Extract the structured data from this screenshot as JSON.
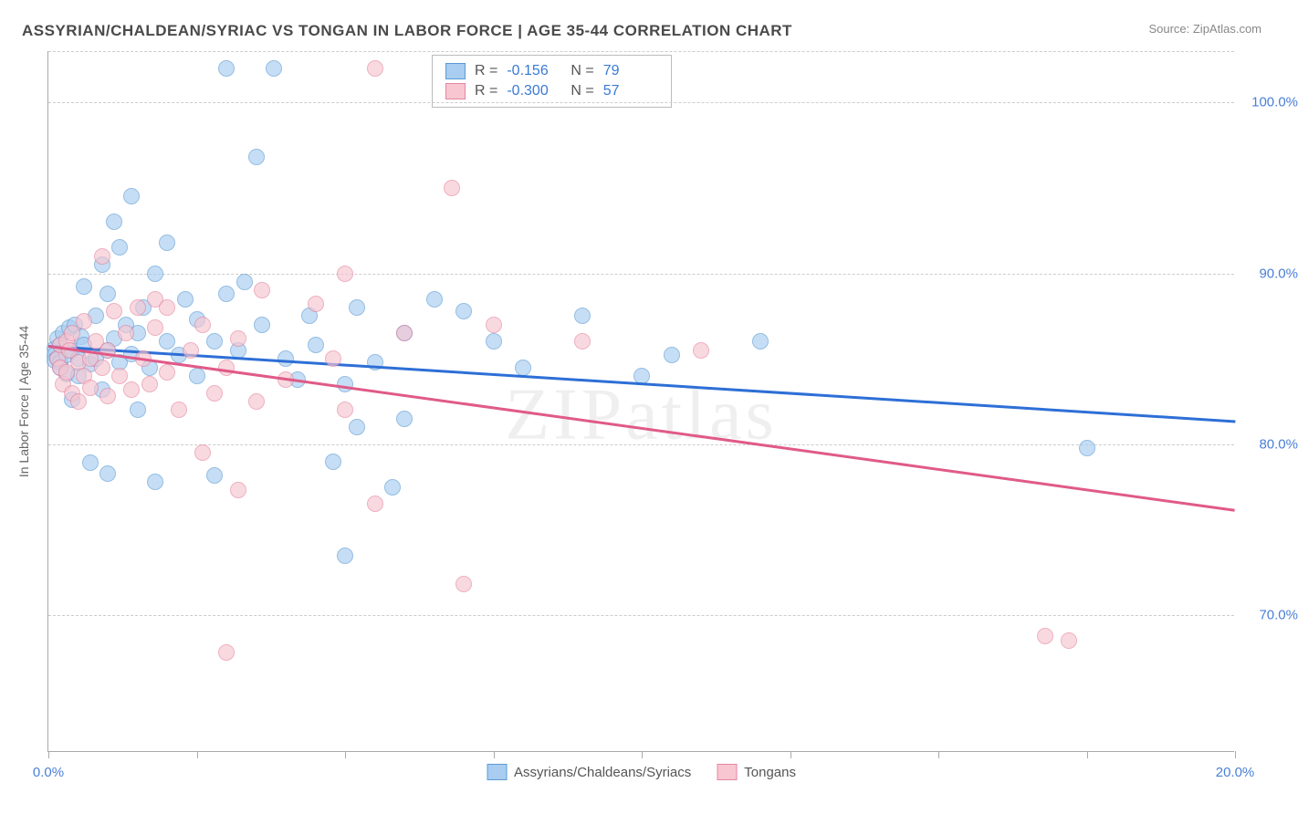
{
  "title": "ASSYRIAN/CHALDEAN/SYRIAC VS TONGAN IN LABOR FORCE | AGE 35-44 CORRELATION CHART",
  "source": "Source: ZipAtlas.com",
  "watermark": "ZIPatlas",
  "y_axis_label": "In Labor Force | Age 35-44",
  "chart": {
    "type": "scatter",
    "xlim": [
      0,
      20
    ],
    "ylim": [
      62,
      103
    ],
    "x_ticks": [
      0,
      2.5,
      5,
      7.5,
      10,
      12.5,
      15,
      17.5,
      20
    ],
    "x_tick_labels": {
      "0": "0.0%",
      "20": "20.0%"
    },
    "y_gridlines": [
      70,
      80,
      90,
      100,
      103
    ],
    "y_tick_labels": {
      "70": "70.0%",
      "80": "80.0%",
      "90": "90.0%",
      "100": "100.0%"
    },
    "background_color": "#ffffff",
    "grid_color": "#cccccc",
    "axis_color": "#aaaaaa",
    "point_radius": 9,
    "series": [
      {
        "name": "Assyrians/Chaldeans/Syriacs",
        "fill": "#a8cdf0",
        "stroke": "#5b9bd5",
        "trend_color": "#2d6fd6",
        "r": -0.156,
        "n": 79,
        "trend": {
          "x1": 0,
          "y1": 85.8,
          "x2": 20,
          "y2": 81.4
        },
        "points": [
          [
            0.1,
            85.6
          ],
          [
            0.1,
            85.2
          ],
          [
            0.1,
            84.9
          ],
          [
            0.15,
            86.2
          ],
          [
            0.15,
            85.0
          ],
          [
            0.2,
            85.8
          ],
          [
            0.2,
            84.8
          ],
          [
            0.2,
            84.5
          ],
          [
            0.25,
            86.5
          ],
          [
            0.3,
            85.2
          ],
          [
            0.3,
            84.1
          ],
          [
            0.35,
            86.8
          ],
          [
            0.4,
            85.5
          ],
          [
            0.4,
            82.6
          ],
          [
            0.45,
            87.0
          ],
          [
            0.5,
            85.0
          ],
          [
            0.5,
            84.0
          ],
          [
            0.55,
            86.3
          ],
          [
            0.6,
            89.2
          ],
          [
            0.6,
            85.8
          ],
          [
            0.7,
            84.7
          ],
          [
            0.7,
            78.9
          ],
          [
            0.8,
            87.5
          ],
          [
            0.8,
            85.0
          ],
          [
            0.9,
            90.5
          ],
          [
            0.9,
            83.2
          ],
          [
            1.0,
            88.8
          ],
          [
            1.0,
            85.5
          ],
          [
            1.0,
            78.3
          ],
          [
            1.1,
            93.0
          ],
          [
            1.1,
            86.2
          ],
          [
            1.2,
            91.5
          ],
          [
            1.2,
            84.8
          ],
          [
            1.3,
            87.0
          ],
          [
            1.4,
            85.3
          ],
          [
            1.4,
            94.5
          ],
          [
            1.5,
            86.5
          ],
          [
            1.5,
            82.0
          ],
          [
            1.6,
            88.0
          ],
          [
            1.7,
            84.5
          ],
          [
            1.8,
            90.0
          ],
          [
            1.8,
            77.8
          ],
          [
            2.0,
            86.0
          ],
          [
            2.0,
            91.8
          ],
          [
            2.2,
            85.2
          ],
          [
            2.3,
            88.5
          ],
          [
            2.5,
            84.0
          ],
          [
            2.5,
            87.3
          ],
          [
            2.8,
            86.0
          ],
          [
            2.8,
            78.2
          ],
          [
            3.0,
            88.8
          ],
          [
            3.0,
            102.0
          ],
          [
            3.2,
            85.5
          ],
          [
            3.3,
            89.5
          ],
          [
            3.5,
            96.8
          ],
          [
            3.6,
            87.0
          ],
          [
            3.8,
            102.0
          ],
          [
            4.0,
            85.0
          ],
          [
            4.2,
            83.8
          ],
          [
            4.4,
            87.5
          ],
          [
            4.5,
            85.8
          ],
          [
            4.8,
            79.0
          ],
          [
            5.0,
            83.5
          ],
          [
            5.0,
            73.5
          ],
          [
            5.2,
            88.0
          ],
          [
            5.2,
            81.0
          ],
          [
            5.5,
            84.8
          ],
          [
            5.8,
            77.5
          ],
          [
            6.0,
            86.5
          ],
          [
            6.0,
            81.5
          ],
          [
            6.5,
            88.5
          ],
          [
            7.0,
            87.8
          ],
          [
            7.5,
            86.0
          ],
          [
            8.0,
            84.5
          ],
          [
            9.0,
            87.5
          ],
          [
            10.0,
            84.0
          ],
          [
            10.5,
            85.2
          ],
          [
            12.0,
            86.0
          ],
          [
            17.5,
            79.8
          ]
        ]
      },
      {
        "name": "Tongans",
        "fill": "#f7c6d1",
        "stroke": "#e486a0",
        "trend_color": "#e05a88",
        "r": -0.3,
        "n": 57,
        "trend": {
          "x1": 0,
          "y1": 85.8,
          "x2": 20,
          "y2": 76.2
        },
        "points": [
          [
            0.15,
            85.0
          ],
          [
            0.2,
            84.5
          ],
          [
            0.2,
            85.8
          ],
          [
            0.25,
            83.5
          ],
          [
            0.3,
            86.0
          ],
          [
            0.3,
            84.2
          ],
          [
            0.35,
            85.5
          ],
          [
            0.4,
            83.0
          ],
          [
            0.4,
            86.5
          ],
          [
            0.5,
            84.8
          ],
          [
            0.5,
            82.5
          ],
          [
            0.6,
            87.2
          ],
          [
            0.6,
            84.0
          ],
          [
            0.7,
            85.0
          ],
          [
            0.7,
            83.3
          ],
          [
            0.8,
            86.0
          ],
          [
            0.9,
            84.5
          ],
          [
            0.9,
            91.0
          ],
          [
            1.0,
            82.8
          ],
          [
            1.0,
            85.5
          ],
          [
            1.1,
            87.8
          ],
          [
            1.2,
            84.0
          ],
          [
            1.3,
            86.5
          ],
          [
            1.4,
            83.2
          ],
          [
            1.5,
            88.0
          ],
          [
            1.6,
            85.0
          ],
          [
            1.7,
            83.5
          ],
          [
            1.8,
            86.8
          ],
          [
            1.8,
            88.5
          ],
          [
            2.0,
            84.2
          ],
          [
            2.0,
            88.0
          ],
          [
            2.2,
            82.0
          ],
          [
            2.4,
            85.5
          ],
          [
            2.6,
            87.0
          ],
          [
            2.6,
            79.5
          ],
          [
            2.8,
            83.0
          ],
          [
            3.0,
            67.8
          ],
          [
            3.0,
            84.5
          ],
          [
            3.2,
            86.2
          ],
          [
            3.2,
            77.3
          ],
          [
            3.5,
            82.5
          ],
          [
            3.6,
            89.0
          ],
          [
            4.0,
            83.8
          ],
          [
            4.5,
            88.2
          ],
          [
            4.8,
            85.0
          ],
          [
            5.0,
            82.0
          ],
          [
            5.0,
            90.0
          ],
          [
            5.5,
            102.0
          ],
          [
            5.5,
            76.5
          ],
          [
            6.0,
            86.5
          ],
          [
            6.8,
            95.0
          ],
          [
            7.0,
            71.8
          ],
          [
            7.5,
            87.0
          ],
          [
            9.0,
            86.0
          ],
          [
            11.0,
            85.5
          ],
          [
            16.8,
            68.8
          ],
          [
            17.2,
            68.5
          ]
        ]
      }
    ]
  },
  "legend_top_rows": [
    {
      "swatch_fill": "#a8cdf0",
      "swatch_stroke": "#5b9bd5",
      "r_label": "R =",
      "r_val": "-0.156",
      "n_label": "N =",
      "n_val": "79"
    },
    {
      "swatch_fill": "#f7c6d1",
      "swatch_stroke": "#e486a0",
      "r_label": "R =",
      "r_val": "-0.300",
      "n_label": "N =",
      "n_val": "57"
    }
  ],
  "legend_bottom": [
    {
      "swatch_fill": "#a8cdf0",
      "swatch_stroke": "#5b9bd5",
      "label": "Assyrians/Chaldeans/Syriacs"
    },
    {
      "swatch_fill": "#f7c6d1",
      "swatch_stroke": "#e486a0",
      "label": "Tongans"
    }
  ]
}
